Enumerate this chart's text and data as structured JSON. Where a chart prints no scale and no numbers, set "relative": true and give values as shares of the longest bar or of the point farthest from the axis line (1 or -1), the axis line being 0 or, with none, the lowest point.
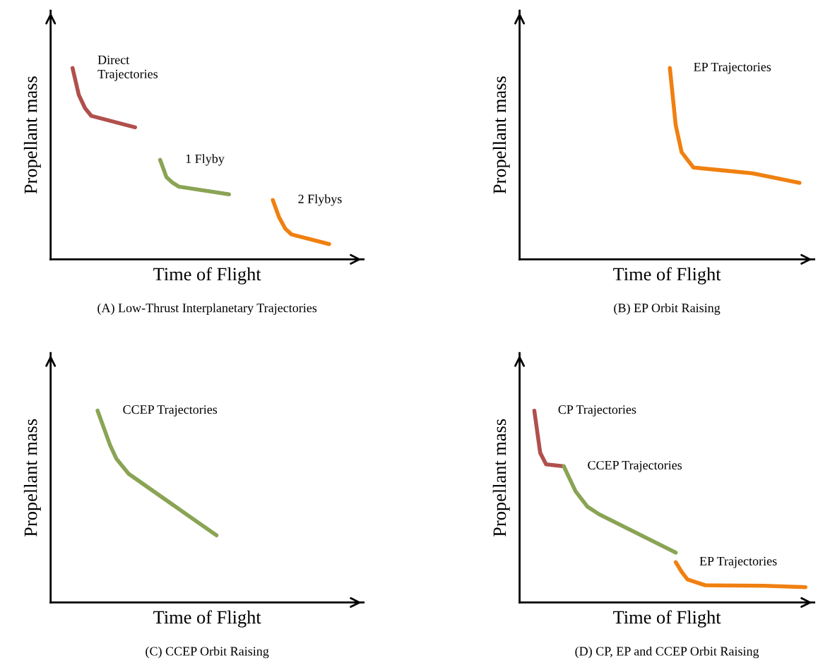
{
  "chart_data": [
    {
      "type": "line",
      "relative": true,
      "title": "(A) Low-Thrust Interplanetary Trajectories",
      "xlabel": "Time of Flight",
      "ylabel": "Propellant mass",
      "tick_labels": false,
      "categories": [
        null,
        null,
        null,
        null,
        null,
        null,
        null,
        null,
        null,
        null,
        null,
        null,
        null,
        null,
        null,
        null,
        null,
        null,
        null,
        null,
        null,
        null,
        null,
        null,
        null,
        null,
        null,
        null,
        null,
        null,
        null,
        null,
        null,
        null,
        null,
        null,
        null,
        null,
        null,
        null,
        null,
        null,
        null,
        null,
        null,
        null,
        null,
        null,
        null,
        null
      ],
      "series": [
        {
          "name": "Direct\nTrajectories",
          "color": "#b0504c",
          "values": [
            null,
            null,
            null,
            1,
            0.86,
            0.79,
            0.75,
            null,
            null,
            null,
            null,
            null,
            null,
            0.69,
            null,
            null,
            null,
            null,
            null,
            null,
            null,
            null,
            null,
            null,
            null,
            null,
            null,
            null,
            null,
            null,
            null,
            null,
            null,
            null,
            null,
            null,
            null,
            null,
            null,
            null,
            null,
            null,
            null,
            null,
            null,
            null,
            null,
            null,
            null,
            null
          ]
        },
        {
          "name": "1 Flyby",
          "color": "#8aa454",
          "values": [
            null,
            null,
            null,
            null,
            null,
            null,
            null,
            null,
            null,
            null,
            null,
            null,
            null,
            null,
            null,
            null,
            null,
            0.52,
            0.43,
            0.4,
            0.38,
            null,
            null,
            null,
            null,
            null,
            null,
            null,
            0.34,
            null,
            null,
            null,
            null,
            null,
            null,
            null,
            null,
            null,
            null,
            null,
            null,
            null,
            null,
            null,
            null,
            null,
            null,
            null,
            null,
            null
          ]
        },
        {
          "name": "2 Flybys",
          "color": "#f08010",
          "values": [
            null,
            null,
            null,
            null,
            null,
            null,
            null,
            null,
            null,
            null,
            null,
            null,
            null,
            null,
            null,
            null,
            null,
            null,
            null,
            null,
            null,
            null,
            null,
            null,
            null,
            null,
            null,
            null,
            null,
            null,
            null,
            null,
            null,
            null,
            null,
            0.31,
            0.22,
            0.16,
            0.13,
            null,
            null,
            null,
            null,
            null,
            0.08,
            null,
            null,
            null,
            null,
            null
          ]
        }
      ]
    },
    {
      "type": "line",
      "relative": true,
      "title": "(B) EP Orbit Raising",
      "xlabel": "Time of Flight",
      "ylabel": "Propellant mass",
      "tick_labels": false,
      "categories": [
        null,
        null,
        null,
        null,
        null,
        null,
        null,
        null,
        null,
        null,
        null,
        null,
        null,
        null,
        null,
        null,
        null,
        null,
        null,
        null,
        null,
        null,
        null,
        null,
        null,
        null,
        null,
        null,
        null,
        null,
        null,
        null,
        null,
        null,
        null,
        null,
        null,
        null,
        null,
        null,
        null,
        null,
        null,
        null,
        null,
        null,
        null,
        null,
        null,
        null
      ],
      "series": [
        {
          "name": "EP Trajectories",
          "color": "#f08010",
          "values": [
            null,
            null,
            null,
            null,
            null,
            null,
            null,
            null,
            null,
            null,
            null,
            null,
            null,
            null,
            null,
            null,
            null,
            null,
            null,
            null,
            null,
            null,
            null,
            null,
            null,
            1,
            0.7,
            0.56,
            null,
            0.48,
            null,
            null,
            null,
            null,
            null,
            null,
            null,
            null,
            null,
            0.45,
            null,
            null,
            null,
            null,
            null,
            null,
            null,
            0.4,
            null,
            null
          ]
        }
      ]
    },
    {
      "type": "line",
      "relative": true,
      "title": "(C) CCEP Orbit Raising",
      "xlabel": "Time of Flight",
      "ylabel": "Propellant mass",
      "tick_labels": false,
      "categories": [
        null,
        null,
        null,
        null,
        null,
        null,
        null,
        null,
        null,
        null,
        null,
        null,
        null,
        null,
        null,
        null,
        null,
        null,
        null,
        null,
        null,
        null,
        null,
        null,
        null,
        null,
        null,
        null,
        null,
        null,
        null,
        null,
        null,
        null,
        null,
        null,
        null,
        null,
        null,
        null,
        null,
        null,
        null,
        null,
        null,
        null,
        null,
        null,
        null,
        null
      ],
      "series": [
        {
          "name": "CCEP Trajectories",
          "color": "#8aa454",
          "values": [
            null,
            null,
            null,
            null,
            null,
            null,
            null,
            1,
            0.91,
            0.82,
            0.75,
            null,
            0.67,
            null,
            null,
            null,
            null,
            null,
            null,
            0.51,
            null,
            null,
            null,
            null,
            null,
            null,
            0.35,
            null,
            null,
            null,
            null,
            null,
            null,
            null,
            null,
            null,
            null,
            null,
            null,
            null,
            null,
            null,
            null,
            null,
            null,
            null,
            null,
            null,
            null,
            null
          ]
        }
      ]
    },
    {
      "type": "line",
      "relative": true,
      "title": "(D) CP, EP and CCEP Orbit Raising",
      "xlabel": "Time of Flight",
      "ylabel": "Propellant mass",
      "tick_labels": false,
      "categories": [
        null,
        null,
        null,
        null,
        null,
        null,
        null,
        null,
        null,
        null,
        null,
        null,
        null,
        null,
        null,
        null,
        null,
        null,
        null,
        null,
        null,
        null,
        null,
        null,
        null,
        null,
        null,
        null,
        null,
        null,
        null,
        null,
        null,
        null,
        null,
        null,
        null,
        null,
        null,
        null,
        null,
        null,
        null,
        null,
        null,
        null,
        null,
        null,
        null,
        null
      ],
      "series": [
        {
          "name": "CP Trajectories",
          "color": "#b0504c",
          "values": [
            null,
            null,
            1,
            0.78,
            0.72,
            null,
            null,
            0.71,
            null,
            null,
            null,
            null,
            null,
            null,
            null,
            null,
            null,
            null,
            null,
            null,
            null,
            null,
            null,
            null,
            null,
            null,
            null,
            null,
            null,
            null,
            null,
            null,
            null,
            null,
            null,
            null,
            null,
            null,
            null,
            null,
            null,
            null,
            null,
            null,
            null,
            null,
            null,
            null,
            null,
            null
          ]
        },
        {
          "name": "CCEP Trajectories",
          "color": "#8aa454",
          "values": [
            null,
            null,
            null,
            null,
            null,
            null,
            null,
            0.71,
            null,
            0.58,
            null,
            0.5,
            null,
            0.46,
            null,
            null,
            null,
            null,
            null,
            null,
            null,
            null,
            null,
            null,
            null,
            null,
            0.26,
            null,
            null,
            null,
            null,
            null,
            null,
            null,
            null,
            null,
            null,
            null,
            null,
            null,
            null,
            null,
            null,
            null,
            null,
            null,
            null,
            null,
            null,
            null
          ]
        },
        {
          "name": "EP Trajectories",
          "color": "#f08010",
          "values": [
            null,
            null,
            null,
            null,
            null,
            null,
            null,
            null,
            null,
            null,
            null,
            null,
            null,
            null,
            null,
            null,
            null,
            null,
            null,
            null,
            null,
            null,
            null,
            null,
            null,
            null,
            0.21,
            0.16,
            0.12,
            null,
            null,
            0.09,
            null,
            null,
            null,
            null,
            null,
            null,
            null,
            null,
            null,
            0.087,
            null,
            null,
            null,
            null,
            null,
            null,
            0.08,
            null
          ]
        }
      ]
    }
  ]
}
